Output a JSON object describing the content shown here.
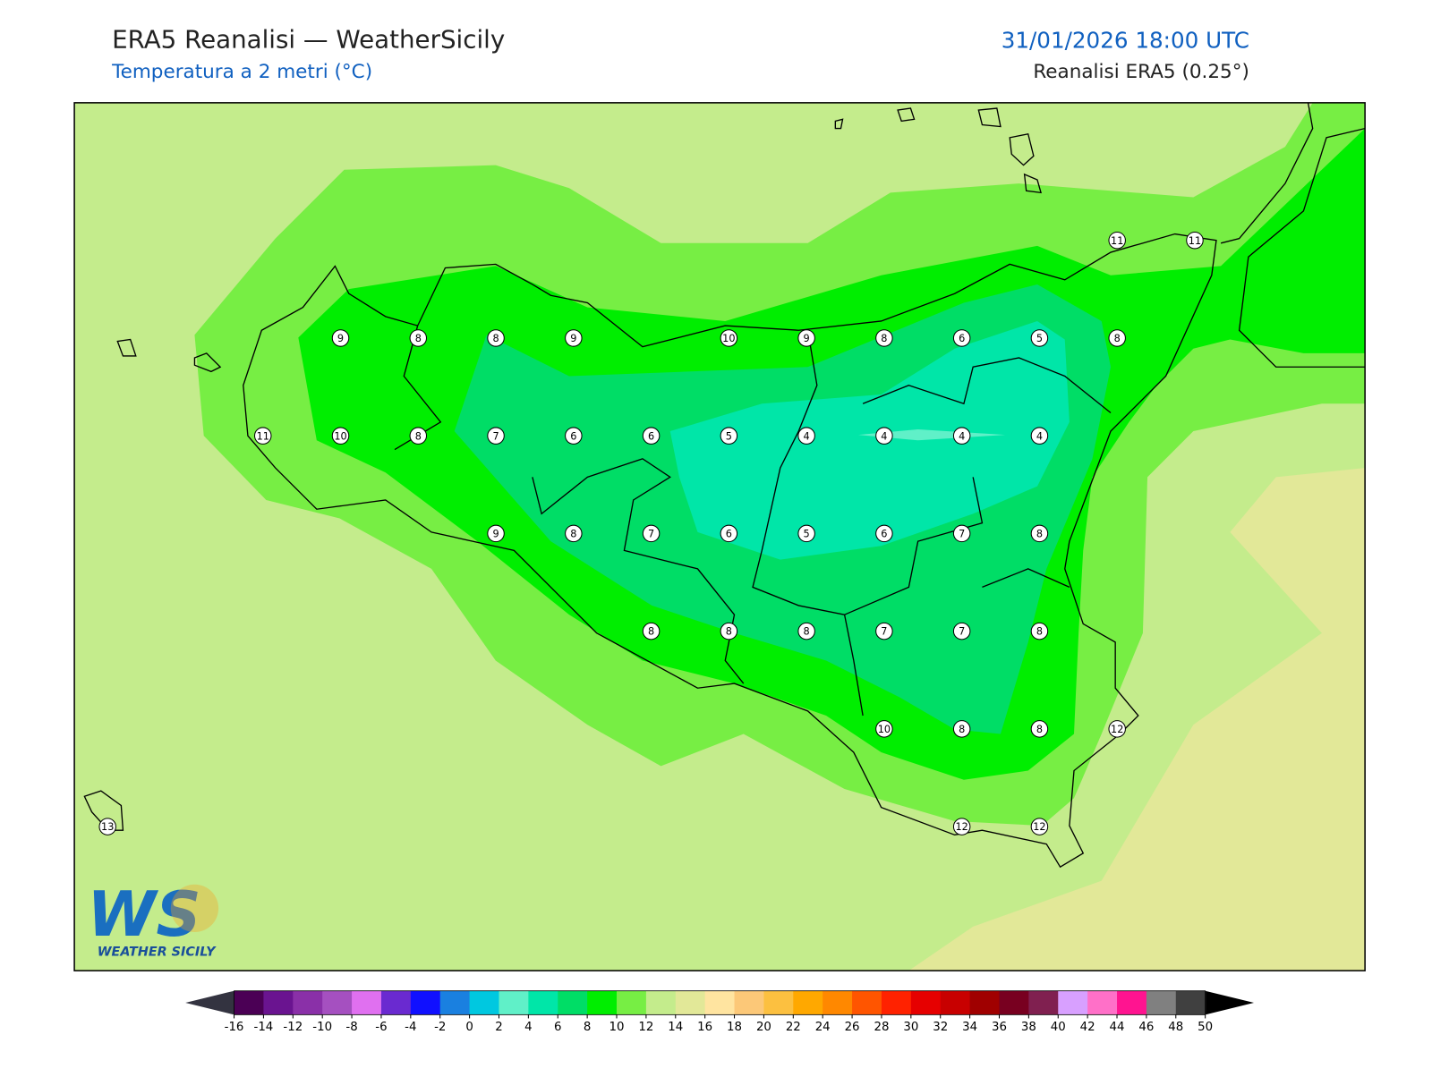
{
  "header": {
    "title": "ERA5 Reanalisi — WeatherSicily",
    "subtitle": "Temperatura a 2 metri (°C)",
    "datetime": "31/01/2026 18:00 UTC",
    "source": "Reanalisi ERA5 (0.25°)"
  },
  "stations": [
    [
      null,
      null,
      null,
      null,
      null,
      null,
      null,
      null,
      null,
      null,
      null,
      null,
      null,
      11,
      11
    ],
    [
      null,
      null,
      null,
      9,
      8,
      8,
      9,
      null,
      10,
      9,
      8,
      6,
      5,
      8,
      null
    ],
    [
      null,
      null,
      11,
      10,
      8,
      7,
      6,
      6,
      5,
      4,
      4,
      4,
      4,
      null,
      null
    ],
    [
      null,
      null,
      null,
      null,
      null,
      9,
      8,
      7,
      6,
      5,
      6,
      7,
      8,
      null,
      null
    ],
    [
      null,
      null,
      null,
      null,
      null,
      null,
      null,
      8,
      8,
      8,
      7,
      7,
      8,
      null,
      null
    ],
    [
      null,
      null,
      null,
      null,
      null,
      null,
      null,
      null,
      null,
      null,
      10,
      8,
      8,
      12,
      null
    ],
    [
      13,
      null,
      null,
      null,
      null,
      null,
      null,
      null,
      null,
      null,
      null,
      12,
      12,
      null,
      null
    ]
  ],
  "logo": {
    "text": "WS",
    "caption": "WEATHER SICILY"
  },
  "colorbar": {
    "ticks": [
      -16,
      -14,
      -12,
      -10,
      -8,
      -6,
      -4,
      -2,
      0,
      2,
      4,
      6,
      8,
      10,
      12,
      14,
      16,
      18,
      20,
      22,
      24,
      26,
      28,
      30,
      32,
      34,
      36,
      38,
      40,
      42,
      44,
      46,
      48,
      50
    ],
    "colors": [
      "#4b0055",
      "#6a1490",
      "#8a30a8",
      "#a550c0",
      "#e070f0",
      "#6a2ad0",
      "#1010ff",
      "#1a80e0",
      "#00c8e0",
      "#60f0c8",
      "#00e6a8",
      "#00dd66",
      "#00ee00",
      "#77ee44",
      "#c4ec8c",
      "#e2e898",
      "#ffe4a0",
      "#fcc878",
      "#fcc040",
      "#ffa800",
      "#ff8800",
      "#ff5500",
      "#ff2200",
      "#e60000",
      "#c80000",
      "#a00000",
      "#780020",
      "#802050",
      "#d8a0ff",
      "#ff70c8",
      "#ff1490",
      "#808080",
      "#404040"
    ],
    "under_color": "#333340",
    "over_color": "#000000"
  }
}
